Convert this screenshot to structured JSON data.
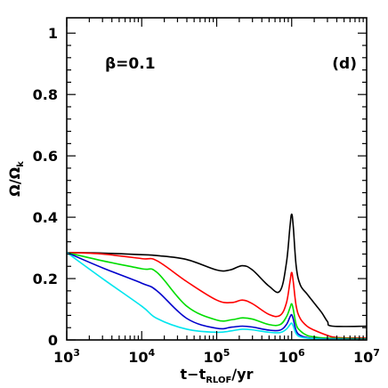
{
  "chart_data": {
    "type": "line",
    "xscale": "log",
    "xlim": [
      1000,
      10000000
    ],
    "ylim": [
      0,
      1.05
    ],
    "xlabel": "t−t",
    "xlabel_sub": "RLOF",
    "xlabel_unit": "/yr",
    "ylabel": "Ω/Ω",
    "ylabel_sub": "k",
    "x_ticks": [
      1000,
      10000,
      100000,
      1000000,
      10000000
    ],
    "x_tick_labels": [
      {
        "base": "10",
        "exp": "3"
      },
      {
        "base": "10",
        "exp": "4"
      },
      {
        "base": "10",
        "exp": "5"
      },
      {
        "base": "10",
        "exp": "6"
      },
      {
        "base": "10",
        "exp": "7"
      }
    ],
    "y_ticks": [
      0,
      0.2,
      0.4,
      0.6,
      0.8,
      1
    ],
    "y_tick_labels": [
      "0",
      "0.2",
      "0.4",
      "0.6",
      "0.8",
      "1"
    ],
    "annotations": {
      "beta": "β=0.1",
      "panel": "(d)"
    },
    "grid": false,
    "series": [
      {
        "color": "#000000",
        "x": [
          1000,
          3000,
          10000,
          16000,
          40000,
          100000,
          150000,
          220000,
          300000,
          500000,
          700000,
          850000,
          950000,
          1000000,
          1050000,
          1150000,
          1300000,
          1600000,
          2000000,
          2500000,
          3000000,
          3500000,
          10000000
        ],
        "y": [
          0.285,
          0.283,
          0.278,
          0.275,
          0.262,
          0.228,
          0.228,
          0.242,
          0.228,
          0.175,
          0.16,
          0.25,
          0.37,
          0.41,
          0.37,
          0.24,
          0.18,
          0.15,
          0.12,
          0.09,
          0.06,
          0.045,
          0.045
        ]
      },
      {
        "color": "#ff0000",
        "x": [
          1000,
          3000,
          10000,
          16000,
          40000,
          100000,
          160000,
          220000,
          300000,
          500000,
          700000,
          850000,
          950000,
          1000000,
          1050000,
          1150000,
          1300000,
          1600000,
          2000000,
          3000000,
          4000000,
          10000000
        ],
        "y": [
          0.285,
          0.28,
          0.265,
          0.258,
          0.19,
          0.13,
          0.122,
          0.13,
          0.118,
          0.083,
          0.08,
          0.12,
          0.19,
          0.22,
          0.19,
          0.11,
          0.07,
          0.045,
          0.032,
          0.015,
          0.008,
          0.006
        ]
      },
      {
        "color": "#00dd00",
        "x": [
          1000,
          3000,
          10000,
          16000,
          40000,
          100000,
          160000,
          220000,
          300000,
          500000,
          700000,
          850000,
          950000,
          1000000,
          1050000,
          1150000,
          1300000,
          1600000,
          2000000,
          3000000,
          10000000
        ],
        "y": [
          0.285,
          0.258,
          0.232,
          0.22,
          0.11,
          0.065,
          0.066,
          0.072,
          0.068,
          0.05,
          0.05,
          0.075,
          0.105,
          0.118,
          0.1,
          0.05,
          0.03,
          0.015,
          0.01,
          0.006,
          0.004
        ]
      },
      {
        "color": "#0000cc",
        "x": [
          1000,
          3000,
          10000,
          16000,
          40000,
          100000,
          160000,
          220000,
          300000,
          500000,
          700000,
          850000,
          950000,
          1000000,
          1050000,
          1150000,
          1300000,
          1600000,
          2000000,
          3000000,
          10000000
        ],
        "y": [
          0.285,
          0.235,
          0.185,
          0.16,
          0.07,
          0.038,
          0.042,
          0.045,
          0.042,
          0.032,
          0.032,
          0.05,
          0.075,
          0.082,
          0.068,
          0.03,
          0.015,
          0.008,
          0.005,
          0.003,
          0.002
        ]
      },
      {
        "color": "#00e5ee",
        "x": [
          1000,
          3000,
          10000,
          16000,
          40000,
          100000,
          160000,
          220000,
          300000,
          500000,
          700000,
          850000,
          950000,
          1000000,
          1050000,
          1150000,
          1300000,
          1600000,
          2000000,
          3000000,
          10000000
        ],
        "y": [
          0.285,
          0.2,
          0.11,
          0.07,
          0.035,
          0.025,
          0.03,
          0.035,
          0.033,
          0.025,
          0.024,
          0.035,
          0.05,
          0.055,
          0.045,
          0.02,
          0.01,
          0.006,
          0.004,
          0.002,
          0.001
        ]
      }
    ]
  }
}
